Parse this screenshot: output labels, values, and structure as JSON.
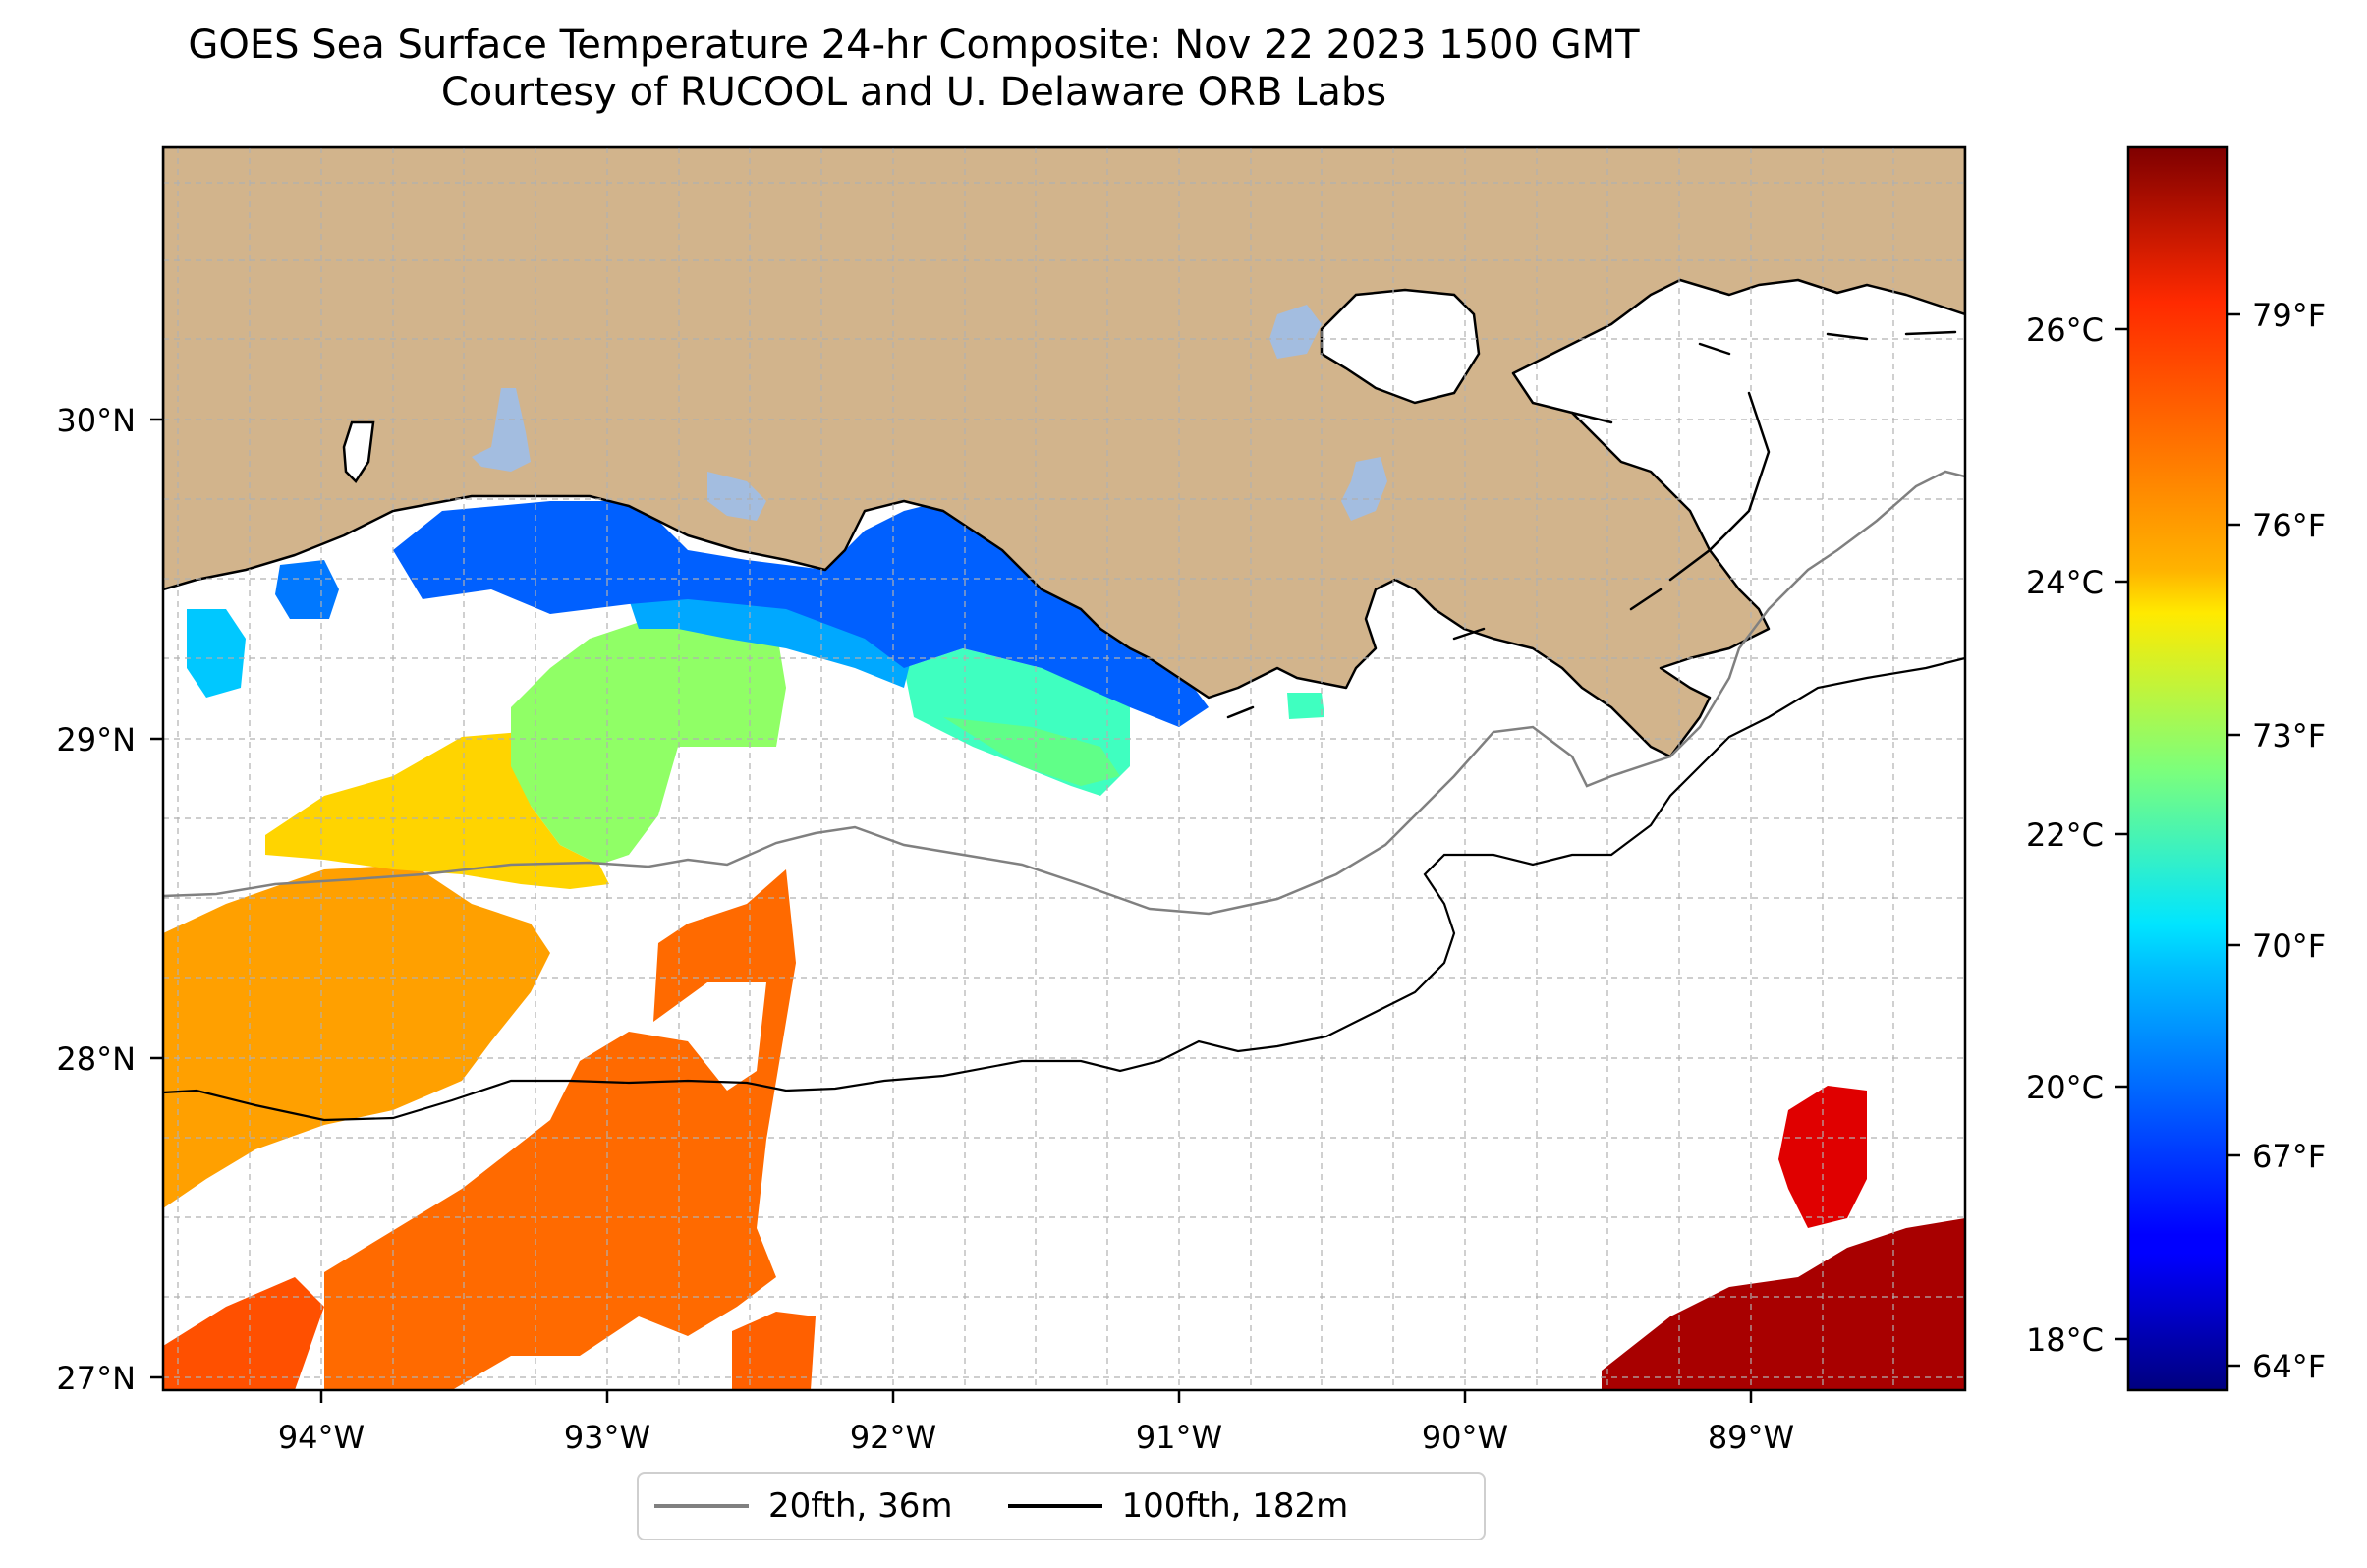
{
  "title": {
    "line1": "GOES Sea Surface Temperature 24-hr Composite: Nov 22 2023 1500 GMT",
    "line2": "Courtesy of RUCOOL and U. Delaware ORB Labs"
  },
  "map": {
    "extent": {
      "lon_min": -94.52,
      "lon_max": -88.2,
      "lat_min": 26.93,
      "lat_max": 30.85
    },
    "land_color": "#d2b48c",
    "inland_water_color": "#a3bde0",
    "lon_ticks": [
      {
        "value": -94,
        "label": "94°W"
      },
      {
        "value": -93,
        "label": "93°W"
      },
      {
        "value": -92,
        "label": "92°W"
      },
      {
        "value": -91,
        "label": "91°W"
      },
      {
        "value": -90,
        "label": "90°W"
      },
      {
        "value": -89,
        "label": "89°W"
      }
    ],
    "lat_ticks": [
      {
        "value": 30,
        "label": "30°N"
      },
      {
        "value": 29,
        "label": "29°N"
      },
      {
        "value": 28,
        "label": "28°N"
      },
      {
        "value": 27,
        "label": "27°N"
      }
    ],
    "gridlines": "dashed"
  },
  "colorbar": {
    "colormap": "jet",
    "range_c": [
      17.6,
      27.45
    ],
    "celsius_ticks": [
      {
        "value": 18,
        "label": "18°C"
      },
      {
        "value": 20,
        "label": "20°C"
      },
      {
        "value": 22,
        "label": "22°C"
      },
      {
        "value": 24,
        "label": "24°C"
      },
      {
        "value": 26,
        "label": "26°C"
      }
    ],
    "fahrenheit_ticks": [
      {
        "value": 64,
        "label": "64°F"
      },
      {
        "value": 67,
        "label": "67°F"
      },
      {
        "value": 70,
        "label": "70°F"
      },
      {
        "value": 73,
        "label": "73°F"
      },
      {
        "value": 76,
        "label": "76°F"
      },
      {
        "value": 79,
        "label": "79°F"
      }
    ]
  },
  "legend": {
    "items": [
      {
        "label": "20fth, 36m",
        "color": "#808080"
      },
      {
        "label": "100fth, 182m",
        "color": "#000000"
      }
    ]
  }
}
